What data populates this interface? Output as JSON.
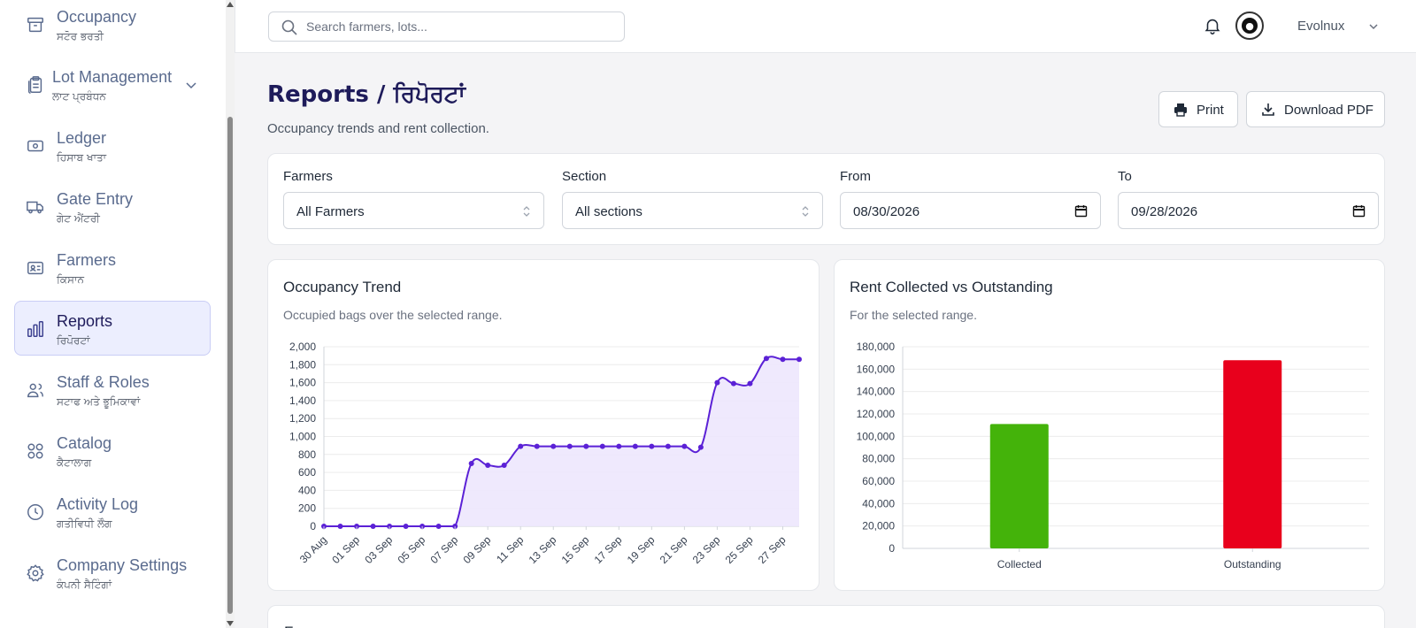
{
  "sidebar": {
    "items": [
      {
        "label": "Occupancy",
        "sub": "ਸਟੋਰ ਭਰਤੀ",
        "icon": "archive-box-icon"
      },
      {
        "label": "Lot Management",
        "sub": "ਲਾਟ ਪ੍ਰਬੰਧਨ",
        "icon": "clipboard-icon"
      },
      {
        "label": "Ledger",
        "sub": "ਹਿਸਾਬ ਖਾਤਾ",
        "icon": "banknote-icon"
      },
      {
        "label": "Gate Entry",
        "sub": "ਗੇਟ ਐਂਟਰੀ",
        "icon": "truck-icon"
      },
      {
        "label": "Farmers",
        "sub": "ਕਿਸਾਨ",
        "icon": "id-card-icon"
      },
      {
        "label": "Reports",
        "sub": "ਰਿਪੋਰਟਾਂ",
        "icon": "bar-chart-icon",
        "active": true
      },
      {
        "label": "Staff & Roles",
        "sub": "ਸਟਾਫ ਅਤੇ ਭੂਮਿਕਾਵਾਂ",
        "icon": "users-icon"
      },
      {
        "label": "Catalog",
        "sub": "ਕੈਟਾਲਾਗ",
        "icon": "grid-icon"
      },
      {
        "label": "Activity Log",
        "sub": "ਗਤੀਵਿਧੀ ਲੌਗ",
        "icon": "clock-icon"
      },
      {
        "label": "Company Settings",
        "sub": "ਕੰਪਨੀ ਸੈਟਿੰਗਾਂ",
        "icon": "gear-icon"
      }
    ]
  },
  "topbar": {
    "search_placeholder": "Search farmers, lots...",
    "user_name": "Evolnux"
  },
  "header": {
    "title": "Reports / ਰਿਪੋਰਟਾਂ",
    "subtitle": "Occupancy trends and rent collection.",
    "print_label": "Print",
    "download_label": "Download PDF"
  },
  "filters": {
    "farmers_label": "Farmers",
    "farmers_value": "All Farmers",
    "section_label": "Section",
    "section_value": "All sections",
    "from_label": "From",
    "from_value": "08/30/2026",
    "to_label": "To",
    "to_value": "09/28/2026"
  },
  "occupancy_card": {
    "title": "Occupancy Trend",
    "subtitle": "Occupied bags over the selected range."
  },
  "rent_card": {
    "title": "Rent Collected vs Outstanding",
    "subtitle": "For the selected range."
  },
  "bottom_card": {
    "title_fragment": "F"
  },
  "colors": {
    "accent": "#5b21d6",
    "area_fill": "#ede7fd",
    "collected": "#44b30a",
    "outstanding": "#e8001c",
    "active_nav_bg": "#eceefe"
  },
  "chart_data": [
    {
      "type": "area",
      "title": "Occupancy Trend",
      "x": [
        "30 Aug",
        "31 Aug",
        "01 Sep",
        "02 Sep",
        "03 Sep",
        "04 Sep",
        "05 Sep",
        "06 Sep",
        "07 Sep",
        "08 Sep",
        "09 Sep",
        "10 Sep",
        "11 Sep",
        "12 Sep",
        "13 Sep",
        "14 Sep",
        "15 Sep",
        "16 Sep",
        "17 Sep",
        "18 Sep",
        "19 Sep",
        "20 Sep",
        "21 Sep",
        "22 Sep",
        "23 Sep",
        "24 Sep",
        "25 Sep",
        "26 Sep",
        "27 Sep",
        "28 Sep"
      ],
      "x_tick_labels": [
        "30 Aug",
        "01 Sep",
        "03 Sep",
        "05 Sep",
        "07 Sep",
        "09 Sep",
        "11 Sep",
        "13 Sep",
        "15 Sep",
        "17 Sep",
        "19 Sep",
        "21 Sep",
        "23 Sep",
        "25 Sep",
        "27 Sep"
      ],
      "values": [
        0,
        0,
        0,
        0,
        0,
        0,
        0,
        0,
        0,
        700,
        680,
        680,
        890,
        890,
        890,
        890,
        890,
        890,
        890,
        890,
        890,
        890,
        890,
        880,
        1600,
        1590,
        1590,
        1870,
        1860,
        1860
      ],
      "ylim": [
        0,
        2000
      ],
      "y_ticks": [
        0,
        200,
        400,
        600,
        800,
        1000,
        1200,
        1400,
        1600,
        1800,
        2000
      ],
      "y_tick_labels": [
        "0",
        "200",
        "400",
        "600",
        "800",
        "1,000",
        "1,200",
        "1,400",
        "1,600",
        "1,800",
        "2,000"
      ],
      "grid": true
    },
    {
      "type": "bar",
      "title": "Rent Collected vs Outstanding",
      "categories": [
        "Collected",
        "Outstanding"
      ],
      "values": [
        111000,
        168000
      ],
      "ylim": [
        0,
        180000
      ],
      "y_ticks": [
        0,
        20000,
        40000,
        60000,
        80000,
        100000,
        120000,
        140000,
        160000,
        180000
      ],
      "y_tick_labels": [
        "0",
        "20,000",
        "40,000",
        "60,000",
        "80,000",
        "100,000",
        "120,000",
        "140,000",
        "160,000",
        "180,000"
      ],
      "grid": true
    }
  ]
}
